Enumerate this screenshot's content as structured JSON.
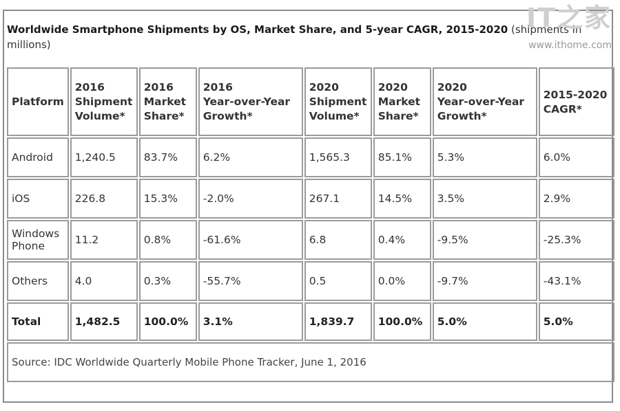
{
  "title": {
    "bold": "Worldwide Smartphone Shipments by OS, Market Share, and 5-year CAGR, 2015-2020",
    "normal": " (shipments in millions)"
  },
  "watermark": {
    "logo": "IT之家",
    "url": "www.ithome.com"
  },
  "table": {
    "headers": [
      [
        "Platform"
      ],
      [
        "2016",
        "Shipment",
        "Volume*"
      ],
      [
        "2016",
        "Market",
        "Share*"
      ],
      [
        "2016",
        "Year-over-Year",
        "Growth*"
      ],
      [
        "2020",
        "Shipment",
        "Volume*"
      ],
      [
        "2020",
        "Market",
        "Share*"
      ],
      [
        "2020",
        "Year-over-Year",
        "Growth*"
      ],
      [
        "2015-2020",
        "CAGR*"
      ]
    ],
    "rows": [
      {
        "platform": [
          "Android"
        ],
        "values": [
          "1,240.5",
          "83.7%",
          "6.2%",
          "1,565.3",
          "85.1%",
          "5.3%",
          "6.0%"
        ]
      },
      {
        "platform": [
          "iOS"
        ],
        "values": [
          "226.8",
          "15.3%",
          "-2.0%",
          "267.1",
          "14.5%",
          "3.5%",
          "2.9%"
        ]
      },
      {
        "platform": [
          "Windows",
          "Phone"
        ],
        "values": [
          "11.2",
          "0.8%",
          "-61.6%",
          "6.8",
          "0.4%",
          "-9.5%",
          "-25.3%"
        ]
      },
      {
        "platform": [
          "Others"
        ],
        "values": [
          "4.0",
          "0.3%",
          "-55.7%",
          "0.5",
          "0.0%",
          "-9.7%",
          "-43.1%"
        ]
      }
    ],
    "total": {
      "platform": [
        "Total"
      ],
      "values": [
        "1,482.5",
        "100.0%",
        "3.1%",
        "1,839.7",
        "100.0%",
        "5.0%",
        "5.0%"
      ]
    },
    "source": "Source: IDC Worldwide Quarterly Mobile Phone Tracker, June 1, 2016"
  }
}
